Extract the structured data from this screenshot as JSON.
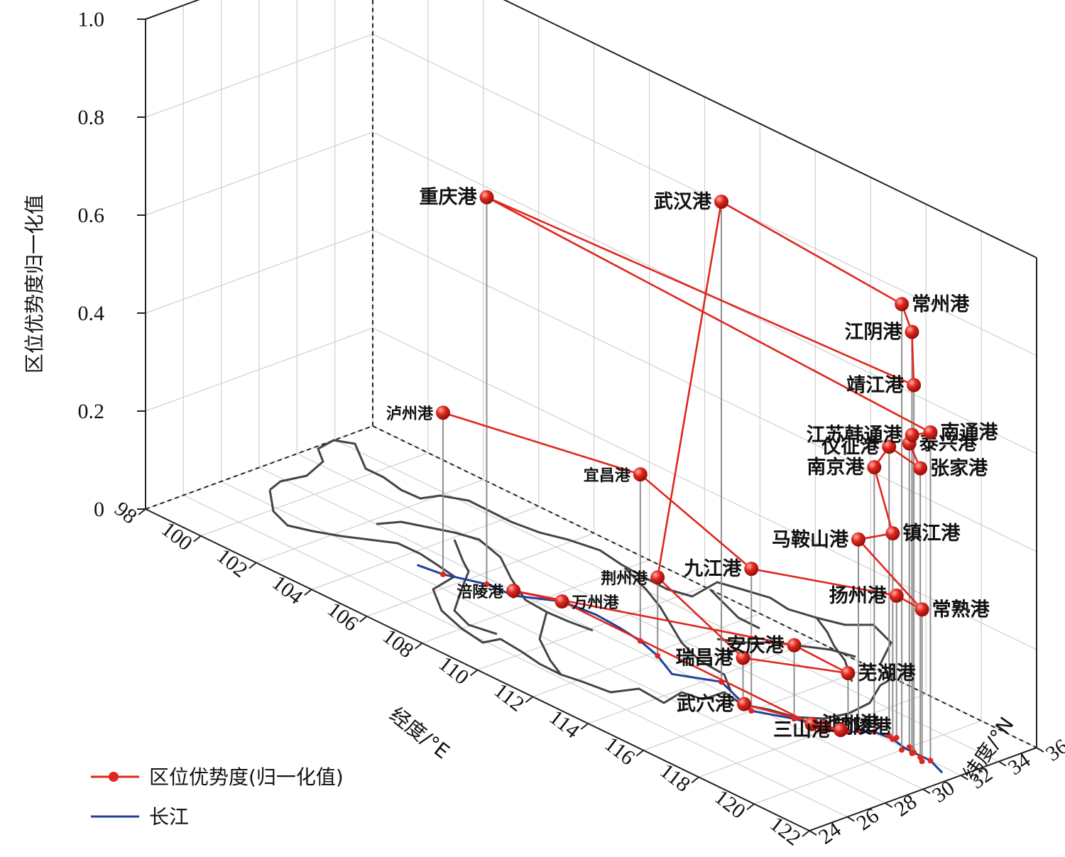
{
  "chart_data": {
    "type": "scatter3d",
    "x_axis": {
      "label": "经度/°E",
      "range": [
        98,
        122
      ],
      "ticks": [
        "98",
        "100",
        "102",
        "104",
        "106",
        "108",
        "110",
        "112",
        "114",
        "116",
        "118",
        "120",
        "122"
      ]
    },
    "y_axis": {
      "label": "纬度/°N",
      "range": [
        24,
        36
      ],
      "ticks": [
        "24",
        "26",
        "28",
        "30",
        "32",
        "34",
        "36"
      ]
    },
    "z_axis": {
      "label": "区位优势度归一化值",
      "range": [
        0,
        1.0
      ],
      "ticks": [
        "0",
        "0.2",
        "0.4",
        "0.6",
        "0.8",
        "1.0"
      ]
    },
    "grid": true,
    "legend": {
      "placement": "bottom-left",
      "entries": [
        {
          "name": "区位优势度(归一化值)",
          "color": "#e0261d",
          "marker": "circle"
        },
        {
          "name": "长江",
          "color": "#1f3f9a",
          "marker": "line"
        }
      ]
    },
    "series": [
      {
        "name": "区位优势度(归一化值)",
        "points": [
          {
            "port": "泸州港",
            "lon": 105.4,
            "lat": 28.9,
            "value": 0.33
          },
          {
            "port": "宜昌港",
            "lon": 111.3,
            "lat": 30.7,
            "value": 0.34
          },
          {
            "port": "九江港",
            "lon": 116.0,
            "lat": 29.7,
            "value": 0.29
          },
          {
            "port": "扬州港",
            "lon": 119.4,
            "lat": 32.4,
            "value": 0.29
          },
          {
            "port": "常熟港",
            "lon": 120.8,
            "lat": 31.7,
            "value": 0.31
          },
          {
            "port": "马鞍山港",
            "lon": 118.5,
            "lat": 31.7,
            "value": 0.39
          },
          {
            "port": "镇江港",
            "lon": 119.4,
            "lat": 32.2,
            "value": 0.42
          },
          {
            "port": "南京港",
            "lon": 118.8,
            "lat": 32.1,
            "value": 0.54
          },
          {
            "port": "仪征港",
            "lon": 119.2,
            "lat": 32.3,
            "value": 0.59
          },
          {
            "port": "张家港",
            "lon": 120.6,
            "lat": 31.9,
            "value": 0.59
          },
          {
            "port": "泰兴港",
            "lon": 120.0,
            "lat": 32.2,
            "value": 0.62
          },
          {
            "port": "江苏韩通港",
            "lon": 120.1,
            "lat": 32.2,
            "value": 0.64
          },
          {
            "port": "南通港",
            "lon": 120.9,
            "lat": 32.0,
            "value": 0.67
          },
          {
            "port": "重庆港",
            "lon": 106.5,
            "lat": 29.6,
            "value": 0.79
          },
          {
            "port": "靖江港",
            "lon": 120.3,
            "lat": 32.0,
            "value": 0.75
          },
          {
            "port": "江阴港",
            "lon": 120.3,
            "lat": 31.9,
            "value": 0.86
          },
          {
            "port": "常州港",
            "lon": 120.0,
            "lat": 31.8,
            "value": 0.91
          },
          {
            "port": "武汉港",
            "lon": 114.3,
            "lat": 30.6,
            "value": 0.98
          },
          {
            "port": "荆州港",
            "lon": 112.2,
            "lat": 30.3,
            "value": 0.16
          },
          {
            "port": "瑞昌港",
            "lon": 115.7,
            "lat": 29.7,
            "value": 0.1
          },
          {
            "port": "芜湖港",
            "lon": 118.4,
            "lat": 31.3,
            "value": 0.12
          },
          {
            "port": "安庆港",
            "lon": 117.0,
            "lat": 30.5,
            "value": 0.15
          },
          {
            "port": "涪陵港",
            "lon": 107.4,
            "lat": 29.7,
            "value": 0.01
          },
          {
            "port": "万州港",
            "lon": 108.4,
            "lat": 30.8,
            "value": 0.0
          },
          {
            "port": "池州港",
            "lon": 117.5,
            "lat": 30.7,
            "value": 0.0
          },
          {
            "port": "铜陵港",
            "lon": 117.8,
            "lat": 30.9,
            "value": 0.0
          },
          {
            "port": "三山港",
            "lon": 118.2,
            "lat": 31.2,
            "value": 0.0
          },
          {
            "port": "武穴港",
            "lon": 115.6,
            "lat": 29.9,
            "value": 0.0
          }
        ]
      },
      {
        "name": "长江",
        "path": [
          [
            104.6,
            28.7
          ],
          [
            105.4,
            28.9
          ],
          [
            106.5,
            29.6
          ],
          [
            107.4,
            29.7
          ],
          [
            108.4,
            30.8
          ],
          [
            109.5,
            31.0
          ],
          [
            110.4,
            30.9
          ],
          [
            111.3,
            30.7
          ],
          [
            112.2,
            30.3
          ],
          [
            113.2,
            29.6
          ],
          [
            114.3,
            30.6
          ],
          [
            115.6,
            29.9
          ],
          [
            116.0,
            29.7
          ],
          [
            117.0,
            30.5
          ],
          [
            117.8,
            30.9
          ],
          [
            118.4,
            31.3
          ],
          [
            118.8,
            32.1
          ],
          [
            119.4,
            32.2
          ],
          [
            120.0,
            32.0
          ],
          [
            120.9,
            32.0
          ],
          [
            121.6,
            31.6
          ]
        ]
      }
    ]
  }
}
